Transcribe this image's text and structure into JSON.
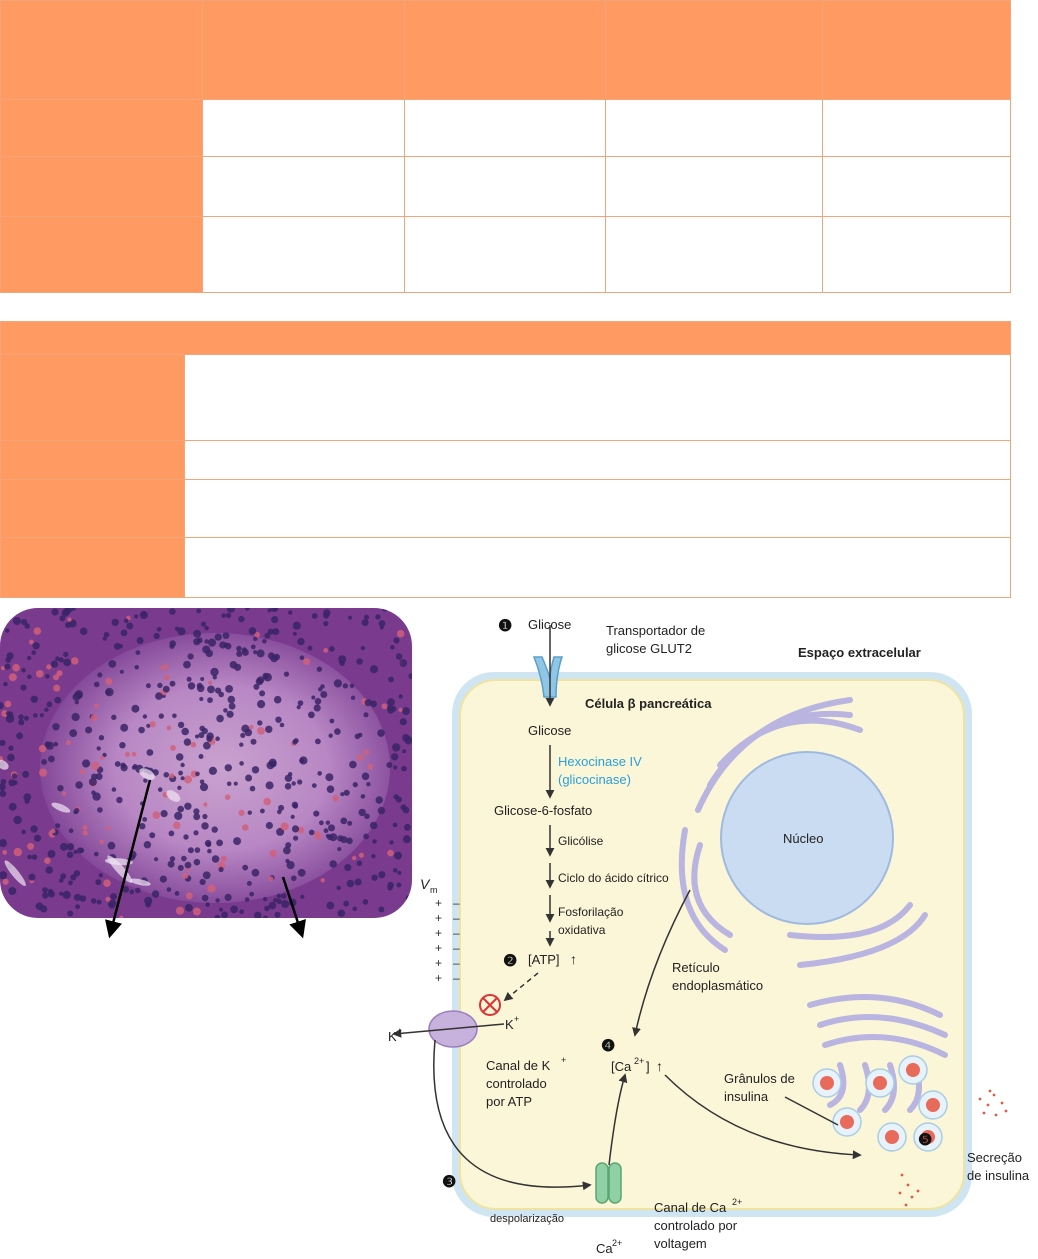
{
  "diagram": {
    "step_markers": [
      "❶",
      "❷",
      "❸",
      "❹",
      "❺"
    ],
    "labels": {
      "glucose_in": "Glicose",
      "glut2": "Transportador de\nglicose GLUT2",
      "extracellular": "Espaço extracelular",
      "cell_title": "Célula β pancreática",
      "glucose_cell": "Glicose",
      "hexokinase": "Hexocinase IV\n(glicocinase)",
      "g6p": "Glicose-6-fosfato",
      "glycolysis": "Glicólise",
      "citric_cycle": "Ciclo do ácido cítrico",
      "oxphos": "Fosforilação\noxidativa",
      "atp": "[ATP]",
      "vm": "V",
      "vm_sub": "m",
      "k_in": "K",
      "k_out": "K",
      "k_channel": "Canal de K\ncontrolado\npor ATP",
      "nucleus": "Núcleo",
      "er": "Retículo\nendoplasmático",
      "ca_cyto": "[Ca",
      "granules": "Grânulos de\ninsulina",
      "secretion": "Secreção\nde insulina",
      "depolarization": "despolarização",
      "ca_channel": "Canal de Ca\ncontrolado por\nvoltagem",
      "ca_out": "Ca"
    },
    "superscripts": {
      "k": "+",
      "ca": "2+"
    }
  },
  "colors": {
    "table_header": "#ff9a63",
    "table_border": "#f3a57a",
    "cell_fill": "#fdf7dc",
    "cell_membrane": "#bfe0f0",
    "nucleus": "#c9dcf2",
    "er": "#b9b4e0",
    "hexokinase_text": "#2aa0d8",
    "k_channel": "#c7b2dd",
    "ca_channel": "#8fd1a5",
    "granule": "#e86a5a"
  }
}
